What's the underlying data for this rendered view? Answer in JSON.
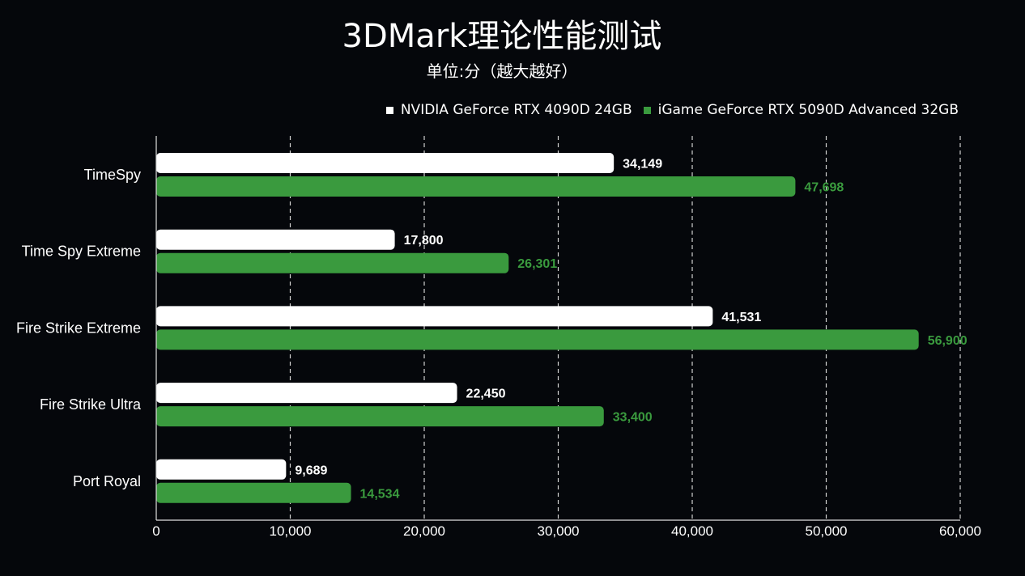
{
  "header": {
    "title": "3DMark理论性能测试",
    "subtitle": "单位:分（越大越好）"
  },
  "colors": {
    "background": "#05070b",
    "series_1": "#ffffff",
    "series_2": "#3a9a3e",
    "grid": "#d0d0d0"
  },
  "legend": {
    "items": [
      {
        "label": "NVIDIA GeForce RTX 4090D 24GB",
        "color": "#ffffff"
      },
      {
        "label": "iGame GeForce RTX 5090D Advanced 32GB",
        "color": "#3a9a3e"
      }
    ]
  },
  "chart_data": {
    "type": "bar",
    "orientation": "horizontal",
    "title": "3DMark理论性能测试",
    "subtitle": "单位:分（越大越好）",
    "categories": [
      "TimeSpy",
      "Time Spy Extreme",
      "Fire Strike Extreme",
      "Fire Strike Ultra",
      "Port Royal"
    ],
    "series": [
      {
        "name": "NVIDIA GeForce RTX 4090D 24GB",
        "values": [
          34149,
          17800,
          41531,
          22450,
          9689
        ],
        "labels": [
          "34,149",
          "17,800",
          "41,531",
          "22,450",
          "9,689"
        ]
      },
      {
        "name": "iGame GeForce RTX 5090D Advanced 32GB",
        "values": [
          47698,
          26301,
          56900,
          33400,
          14534
        ],
        "labels": [
          "47,698",
          "26,301",
          "56,900",
          "33,400",
          "14,534"
        ]
      }
    ],
    "xlim": [
      0,
      60000
    ],
    "xticks": [
      0,
      10000,
      20000,
      30000,
      40000,
      50000,
      60000
    ],
    "xtick_labels": [
      "0",
      "10,000",
      "20,000",
      "30,000",
      "40,000",
      "50,000",
      "60,000"
    ],
    "grid": "vertical dashed",
    "legend_position": "top-right"
  }
}
